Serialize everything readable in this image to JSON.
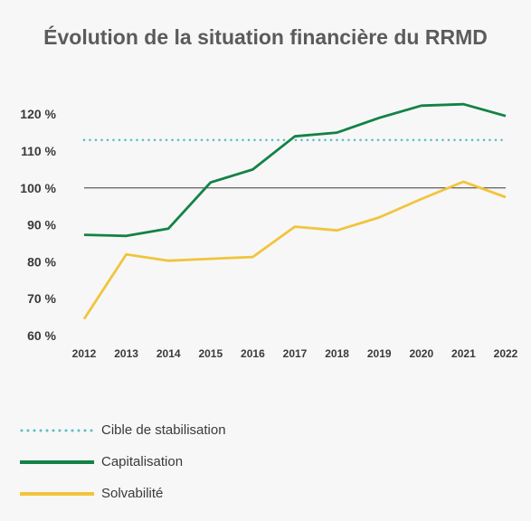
{
  "chart_data": {
    "type": "line",
    "title": "Évolution de la situation financière du RRMD",
    "x": [
      "2012",
      "2013",
      "2014",
      "2015",
      "2016",
      "2017",
      "2018",
      "2019",
      "2020",
      "2021",
      "2022"
    ],
    "ylim": [
      60,
      125
    ],
    "yticks": [
      60,
      70,
      80,
      90,
      100,
      110,
      120
    ],
    "ytick_labels": [
      "60 %",
      "70 %",
      "80 %",
      "90 %",
      "100 %",
      "110 %",
      "120 %"
    ],
    "reference_line": 100,
    "series": [
      {
        "name": "Cible de stabilisation",
        "color": "#5bbfc4",
        "style": "dotted",
        "values": [
          113,
          113,
          113,
          113,
          113,
          113,
          113,
          113,
          113,
          113,
          113
        ]
      },
      {
        "name": "Capitalisation",
        "color": "#138246",
        "style": "solid",
        "values": [
          87.3,
          87,
          89,
          101.5,
          105,
          114,
          115,
          119,
          122.3,
          122.7,
          119.5
        ]
      },
      {
        "name": "Solvabilité",
        "color": "#f2c43d",
        "style": "solid",
        "values": [
          64.5,
          82,
          80.3,
          80.8,
          81.3,
          89.5,
          88.5,
          92,
          97,
          101.7,
          97.5
        ]
      }
    ],
    "grid": false,
    "legend_position": "bottom-left"
  }
}
